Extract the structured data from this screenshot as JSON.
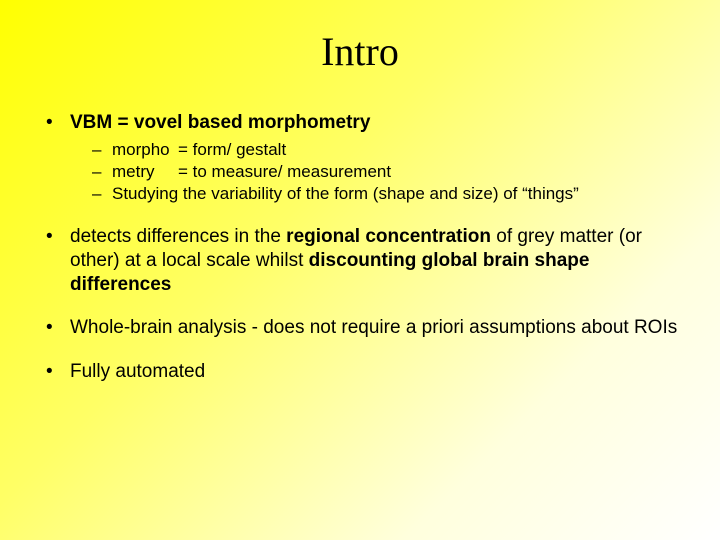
{
  "slide": {
    "title": "Intro",
    "background_gradient": {
      "from": "#ffff00",
      "to": "#ffffff",
      "angle_deg": 135
    },
    "text_color": "#000000",
    "title_font": {
      "family": "Times New Roman",
      "size_pt": 40,
      "weight": "normal"
    },
    "body_font": {
      "family": "Arial",
      "size_pt": 19,
      "sub_size_pt": 17
    },
    "bullets": [
      {
        "runs": [
          {
            "text": "VBM = vovel based morphometry",
            "bold": true
          }
        ],
        "sub": [
          {
            "label": "morpho",
            "def": "= form/ gestalt"
          },
          {
            "label": "metry",
            "def": "= to measure/ measurement"
          },
          {
            "full": "Studying the variability of the form (shape and size) of “things”"
          }
        ]
      },
      {
        "runs": [
          {
            "text": "detects differences in the ",
            "bold": false
          },
          {
            "text": "regional concentration",
            "bold": true
          },
          {
            "text": " of grey matter (or other) at a local scale whilst ",
            "bold": false
          },
          {
            "text": "discounting global brain shape differences",
            "bold": true
          }
        ]
      },
      {
        "runs": [
          {
            "text": "Whole-brain analysis - does not require a priori assumptions about ROIs",
            "bold": false
          }
        ]
      },
      {
        "runs": [
          {
            "text": "Fully automated",
            "bold": false
          }
        ]
      }
    ]
  }
}
